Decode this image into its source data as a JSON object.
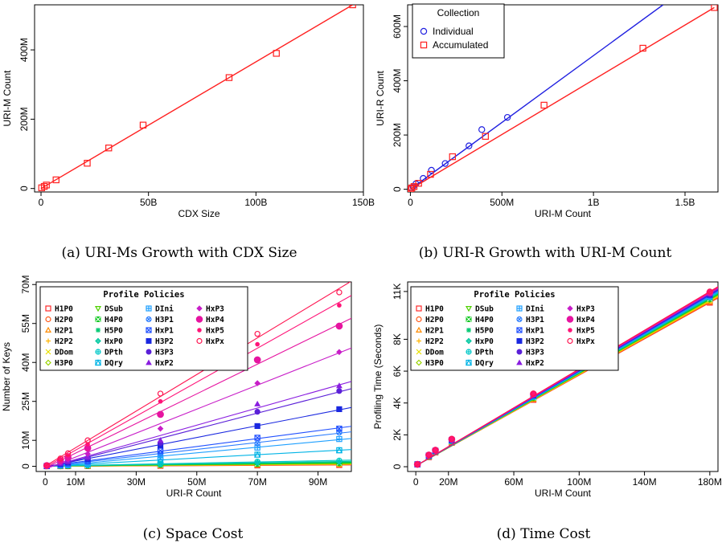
{
  "captions": {
    "a": "(a) URI-Ms Growth with CDX Size",
    "b": "(b) URI-R Growth with URI-M Count",
    "c": "(c) Space Cost",
    "d": "(d) Time Cost"
  },
  "colors": {
    "red": "#ff2020",
    "blue": "#2020e0"
  },
  "profile_policies": {
    "title": "Profile Policies",
    "items": [
      {
        "label": "H1P0",
        "color": "#ff2a2a",
        "marker": "square"
      },
      {
        "label": "H2P0",
        "color": "#ff5a1a",
        "marker": "circle"
      },
      {
        "label": "H2P1",
        "color": "#ff8c00",
        "marker": "triangle"
      },
      {
        "label": "H2P2",
        "color": "#ffb400",
        "marker": "plus"
      },
      {
        "label": "DDom",
        "color": "#e8e000",
        "marker": "cross"
      },
      {
        "label": "H3P0",
        "color": "#9ad400",
        "marker": "diamond"
      },
      {
        "label": "DSub",
        "color": "#4fd000",
        "marker": "triangle-down"
      },
      {
        "label": "H4P0",
        "color": "#10c820",
        "marker": "boxcross"
      },
      {
        "label": "H5P0",
        "color": "#00c870",
        "marker": "star"
      },
      {
        "label": "HxP0",
        "color": "#00c8a0",
        "marker": "diamondplus"
      },
      {
        "label": "DPth",
        "color": "#00c8c8",
        "marker": "circleplus"
      },
      {
        "label": "DQry",
        "color": "#00b4e6",
        "marker": "trisquare"
      },
      {
        "label": "DIni",
        "color": "#1ea0ff",
        "marker": "squareplus"
      },
      {
        "label": "H3P1",
        "color": "#2a7cff",
        "marker": "circlex"
      },
      {
        "label": "HxP1",
        "color": "#2050ff",
        "marker": "squarex"
      },
      {
        "label": "H3P2",
        "color": "#1a28e0",
        "marker": "filled-square"
      },
      {
        "label": "H3P3",
        "color": "#5a20d8",
        "marker": "filled-circle"
      },
      {
        "label": "HxP2",
        "color": "#8a1ee0",
        "marker": "filled-triangle"
      },
      {
        "label": "HxP3",
        "color": "#c81ec8",
        "marker": "filled-diamond"
      },
      {
        "label": "HxP4",
        "color": "#e614a0",
        "marker": "big-circle"
      },
      {
        "label": "HxP5",
        "color": "#ff1478",
        "marker": "small-circle"
      },
      {
        "label": "HxPx",
        "color": "#ff1450",
        "marker": "circle"
      }
    ]
  },
  "chart_data": [
    {
      "id": "a",
      "type": "scatter",
      "title": "",
      "xlabel": "CDX Size",
      "ylabel": "URI-M Count",
      "xlim": [
        -3,
        150
      ],
      "ylim": [
        -10,
        530
      ],
      "xticks": [
        0,
        50,
        100,
        150
      ],
      "xtick_labels": [
        "0",
        "50B",
        "100B",
        "150B"
      ],
      "yticks": [
        0,
        200,
        400
      ],
      "ytick_labels": [
        "0",
        "200M",
        "400M"
      ],
      "series": [
        {
          "color": "#ff2020",
          "marker": "square",
          "x": [
            0.3,
            1.5,
            2.5,
            7,
            21.5,
            31.5,
            47.5,
            87.5,
            109.5,
            145
          ],
          "y": [
            2,
            6,
            10,
            25,
            73,
            117,
            183,
            320,
            390,
            530
          ],
          "fit": [
            [
              0,
              0
            ],
            [
              145,
              530
            ]
          ]
        }
      ]
    },
    {
      "id": "b",
      "type": "scatter",
      "title": "",
      "xlabel": "URI-M Count",
      "ylabel": "URI-R Count",
      "xlim": [
        -15,
        1680
      ],
      "ylim": [
        -10,
        680
      ],
      "xticks": [
        0,
        500,
        1000,
        1500
      ],
      "xtick_labels": [
        "0",
        "500M",
        "1B",
        "1.5B"
      ],
      "yticks": [
        0,
        200,
        400,
        600
      ],
      "ytick_labels": [
        "0",
        "200M",
        "400M",
        "600M"
      ],
      "legend": {
        "title": "Collection",
        "placement": "top-left",
        "entries": [
          "Individual",
          "Accumulated"
        ]
      },
      "series": [
        {
          "name": "Individual",
          "color": "#2020e0",
          "marker": "circle",
          "x": [
            5,
            15,
            30,
            70,
            115,
            190,
            320,
            390,
            530
          ],
          "y": [
            5,
            10,
            20,
            40,
            70,
            95,
            160,
            220,
            265
          ],
          "fit": [
            [
              0,
              0
            ],
            [
              1380,
              680
            ]
          ]
        },
        {
          "name": "Accumulated",
          "color": "#ff2020",
          "marker": "square",
          "x": [
            2,
            8,
            20,
            45,
            110,
            230,
            410,
            730,
            1270,
            1660
          ],
          "y": [
            1,
            5,
            10,
            22,
            55,
            120,
            195,
            310,
            520,
            670
          ],
          "fit": [
            [
              0,
              0
            ],
            [
              1660,
              670
            ]
          ]
        }
      ]
    },
    {
      "id": "c",
      "type": "scatter",
      "title": "",
      "xlabel": "URI-R Count",
      "ylabel": "Number of Keys",
      "xlim": [
        -3,
        101
      ],
      "ylim": [
        -2,
        71
      ],
      "xticks": [
        0,
        10,
        30,
        50,
        70,
        90
      ],
      "xtick_labels": [
        "0",
        "10M",
        "30M",
        "50M",
        "70M",
        "90M"
      ],
      "yticks": [
        0,
        10,
        25,
        40,
        55,
        70
      ],
      "ytick_labels": [
        "0",
        "10M",
        "25M",
        "40M",
        "55M",
        "70M"
      ],
      "x": [
        0.5,
        5,
        7.5,
        14,
        38,
        70,
        97
      ],
      "series": [
        {
          "name": "H1P0",
          "y": [
            0.02,
            0.04,
            0.05,
            0.08,
            0.2,
            0.35,
            0.5
          ]
        },
        {
          "name": "H2P0",
          "y": [
            0.03,
            0.05,
            0.07,
            0.1,
            0.25,
            0.45,
            0.6
          ]
        },
        {
          "name": "H2P1",
          "y": [
            0.03,
            0.06,
            0.08,
            0.12,
            0.3,
            0.55,
            0.7
          ]
        },
        {
          "name": "H2P2",
          "y": [
            0.04,
            0.07,
            0.09,
            0.14,
            0.35,
            0.6,
            0.8
          ]
        },
        {
          "name": "DDom",
          "y": [
            0.04,
            0.08,
            0.1,
            0.15,
            0.4,
            0.7,
            0.9
          ]
        },
        {
          "name": "H3P0",
          "y": [
            0.05,
            0.09,
            0.12,
            0.18,
            0.5,
            0.8,
            1.0
          ]
        },
        {
          "name": "DSub",
          "y": [
            0.05,
            0.1,
            0.13,
            0.2,
            0.55,
            0.9,
            1.1
          ]
        },
        {
          "name": "H4P0",
          "y": [
            0.06,
            0.12,
            0.15,
            0.24,
            0.6,
            1.0,
            1.3
          ]
        },
        {
          "name": "H5P0",
          "y": [
            0.07,
            0.13,
            0.18,
            0.28,
            0.7,
            1.2,
            1.5
          ]
        },
        {
          "name": "HxP0",
          "y": [
            0.08,
            0.15,
            0.2,
            0.3,
            0.8,
            1.4,
            1.8
          ]
        },
        {
          "name": "DPth",
          "y": [
            0.1,
            0.2,
            0.3,
            0.4,
            1.0,
            1.8,
            2.2
          ]
        },
        {
          "name": "DQry",
          "y": [
            0.1,
            0.3,
            0.4,
            0.8,
            2.4,
            4.5,
            6.2
          ]
        },
        {
          "name": "DIni",
          "y": [
            0.1,
            0.4,
            0.6,
            1.1,
            3.6,
            7.2,
            10.5
          ]
        },
        {
          "name": "H3P1",
          "y": [
            0.1,
            0.6,
            0.9,
            1.6,
            5.0,
            8.8,
            13.0
          ]
        },
        {
          "name": "HxP1",
          "y": [
            0.1,
            0.7,
            1.1,
            2.0,
            6.0,
            11.0,
            14.5
          ]
        },
        {
          "name": "H3P2",
          "y": [
            0.2,
            1.0,
            1.5,
            2.8,
            8.0,
            15.5,
            22.0
          ]
        },
        {
          "name": "H3P3",
          "y": [
            0.2,
            1.1,
            1.7,
            3.2,
            9.0,
            21.0,
            29.0
          ]
        },
        {
          "name": "HxP2",
          "y": [
            0.2,
            1.2,
            1.9,
            3.6,
            10.0,
            24.0,
            31.0
          ]
        },
        {
          "name": "HxP3",
          "y": [
            0.2,
            1.5,
            2.6,
            4.8,
            14.5,
            32.0,
            44.0
          ]
        },
        {
          "name": "HxP4",
          "y": [
            0.3,
            2.2,
            3.5,
            7.0,
            20.0,
            41.0,
            54.0
          ]
        },
        {
          "name": "HxP5",
          "y": [
            0.3,
            2.6,
            4.2,
            8.5,
            25.0,
            47.0,
            62.0
          ]
        },
        {
          "name": "HxPx",
          "y": [
            0.3,
            3.0,
            5.0,
            10.0,
            28.0,
            51.0,
            67.0
          ]
        }
      ]
    },
    {
      "id": "d",
      "type": "scatter",
      "title": "",
      "xlabel": "URI-M Count",
      "ylabel": "Profiling Time (Seconds)",
      "xlim": [
        -5,
        185
      ],
      "ylim": [
        -0.3,
        11.6
      ],
      "xticks": [
        0,
        20,
        60,
        100,
        140,
        180
      ],
      "xtick_labels": [
        "0",
        "20M",
        "60M",
        "100M",
        "140M",
        "180M"
      ],
      "yticks": [
        0,
        2,
        4,
        6,
        8,
        11
      ],
      "ytick_labels": [
        "0",
        "2K",
        "4K",
        "6K",
        "8K",
        "11K"
      ],
      "x": [
        1,
        8,
        12,
        22,
        72,
        118,
        180
      ],
      "y_range_across_series": [
        [
          0.15,
          0.15
        ],
        [
          0.6,
          0.75
        ],
        [
          0.9,
          1.05
        ],
        [
          1.5,
          1.75
        ],
        [
          4.2,
          4.6
        ],
        [
          7.3,
          8.0
        ],
        [
          10.3,
          11.0
        ]
      ]
    }
  ]
}
